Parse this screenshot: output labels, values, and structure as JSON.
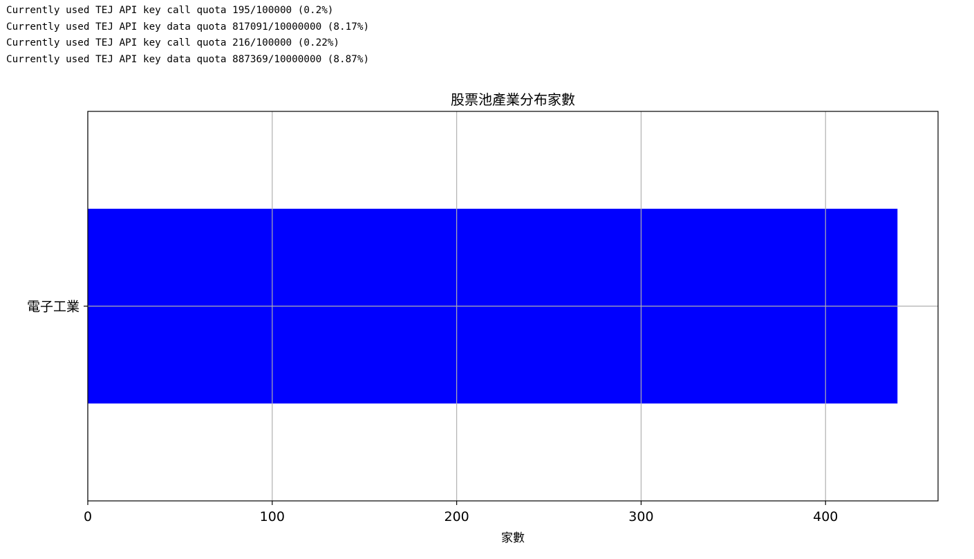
{
  "output_log": [
    "Currently used TEJ API key call quota 195/100000 (0.2%)",
    "Currently used TEJ API key data quota 817091/10000000 (8.17%)",
    "Currently used TEJ API key call quota 216/100000 (0.22%)",
    "Currently used TEJ API key data quota 887369/10000000 (8.87%)"
  ],
  "chart_data": {
    "type": "bar",
    "orientation": "horizontal",
    "title": "股票池產業分布家數",
    "xlabel": "家數",
    "ylabel": "",
    "categories": [
      "電子工業"
    ],
    "values": [
      439
    ],
    "xlim": [
      0,
      461
    ],
    "xticks": [
      0,
      100,
      200,
      300,
      400
    ],
    "grid": true,
    "bar_color": "#0000ff",
    "grid_color": "#b0b0b0"
  }
}
